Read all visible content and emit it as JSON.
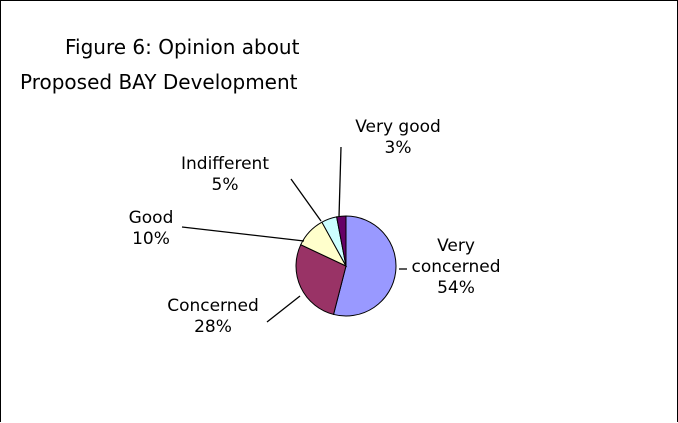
{
  "chart_data": {
    "type": "pie",
    "title": "Figure 6: Opinion about Proposed BAY Development",
    "title_lines": [
      "Figure 6: Opinion about",
      "Proposed BAY Development"
    ],
    "slices": [
      {
        "name": "Very concerned",
        "label_lines": [
          "Very",
          "concerned"
        ],
        "value": 54,
        "value_label": "54%",
        "color": "#9999ff"
      },
      {
        "name": "Concerned",
        "label_lines": [
          "Concerned"
        ],
        "value": 28,
        "value_label": "28%",
        "color": "#993366"
      },
      {
        "name": "Good",
        "label_lines": [
          "Good"
        ],
        "value": 10,
        "value_label": "10%",
        "color": "#ffffcc"
      },
      {
        "name": "Indifferent",
        "label_lines": [
          "Indifferent"
        ],
        "value": 5,
        "value_label": "5%",
        "color": "#ccffff"
      },
      {
        "name": "Very good",
        "label_lines": [
          "Very good"
        ],
        "value": 3,
        "value_label": "3%",
        "color": "#660066"
      }
    ],
    "start": "12 o'clock",
    "direction": "clockwise",
    "legend": "none",
    "data_labels": "outside with leader lines"
  }
}
